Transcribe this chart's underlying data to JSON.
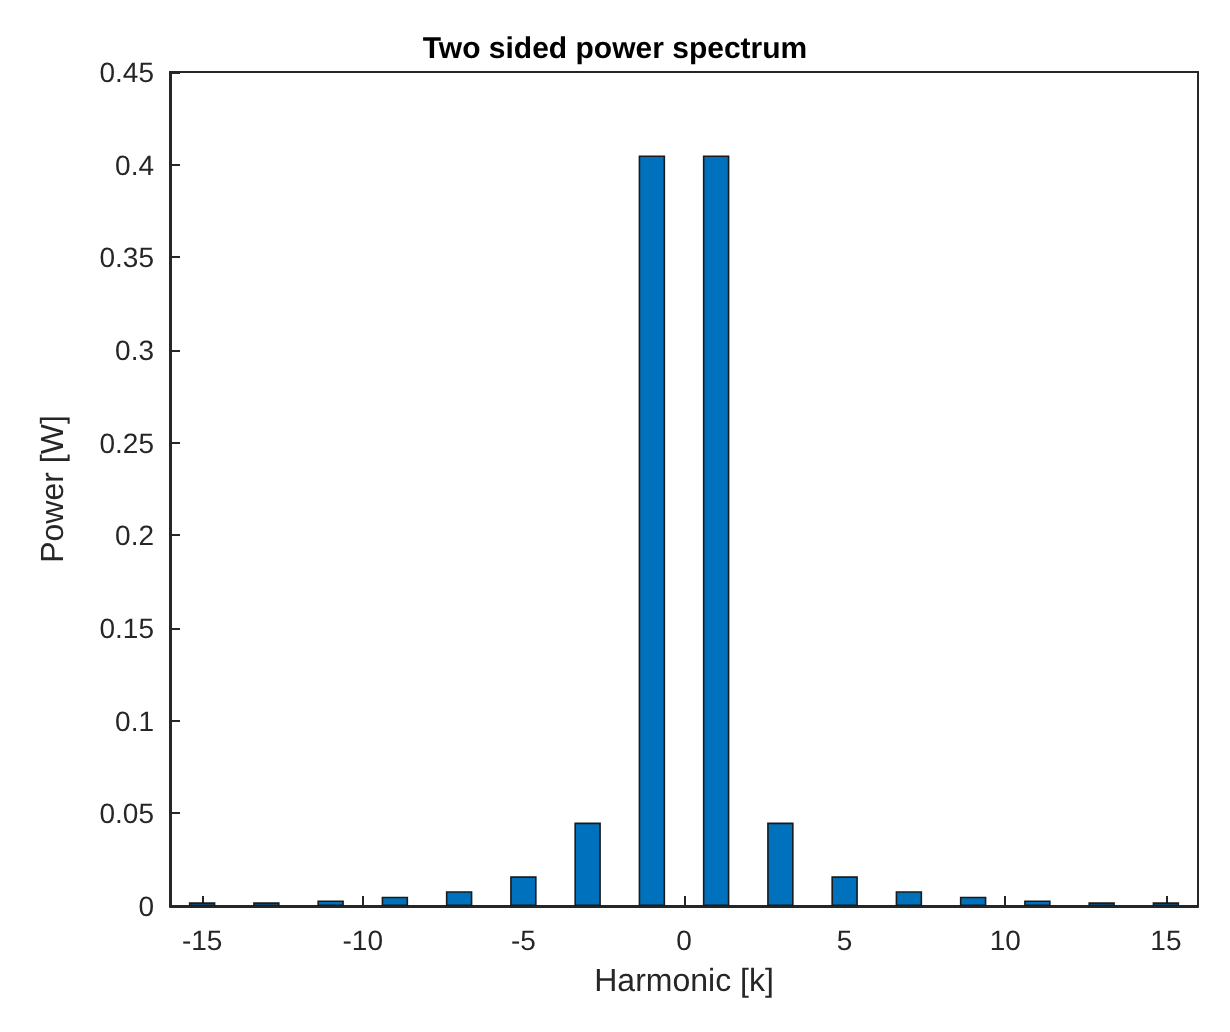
{
  "chart_data": {
    "type": "bar",
    "title": "Two sided power spectrum",
    "xlabel": "Harmonic [k]",
    "ylabel": "Power [W]",
    "x": [
      -15,
      -13,
      -11,
      -9,
      -7,
      -5,
      -3,
      -1,
      1,
      3,
      5,
      7,
      9,
      11,
      13,
      15
    ],
    "values": [
      0.002,
      0.002,
      0.003,
      0.005,
      0.008,
      0.016,
      0.045,
      0.405,
      0.405,
      0.045,
      0.016,
      0.008,
      0.005,
      0.003,
      0.002,
      0.002
    ],
    "color": "#0072bd",
    "xlim": [
      -16,
      16
    ],
    "xticks": [
      -15,
      -10,
      -5,
      0,
      5,
      10,
      15
    ],
    "ylim": [
      0,
      0.45
    ],
    "yticks": [
      0,
      0.05,
      0.1,
      0.15,
      0.2,
      0.25,
      0.3,
      0.35,
      0.4,
      0.45
    ],
    "grid": false
  }
}
